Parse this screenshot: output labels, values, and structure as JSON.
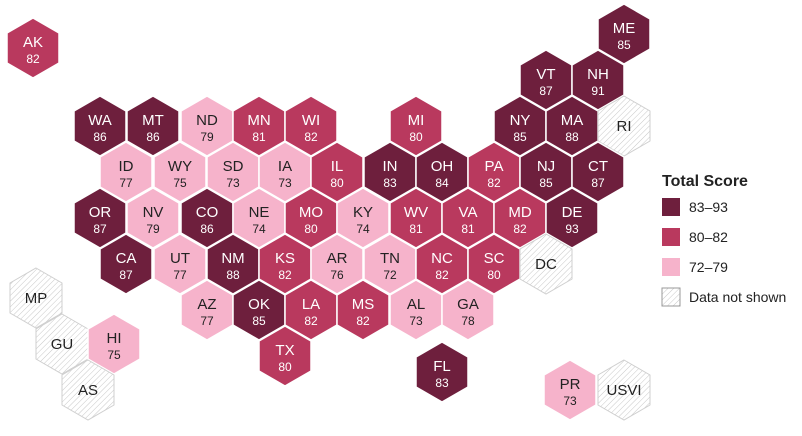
{
  "colors": {
    "high": "#6e1f3d",
    "mid": "#b9395e",
    "low": "#f6b3cb",
    "none": "#ffffff"
  },
  "legend": {
    "title": "Total Score",
    "items": [
      {
        "label": "83–93",
        "color": "#6e1f3d"
      },
      {
        "label": "80–82",
        "color": "#b9395e"
      },
      {
        "label": "72–79",
        "color": "#f6b3cb"
      },
      {
        "label": "Data not shown",
        "color": "#ffffff"
      }
    ]
  },
  "states": [
    {
      "abbr": "AK",
      "value": "82",
      "tier": "mid"
    },
    {
      "abbr": "ME",
      "value": "85",
      "tier": "high"
    },
    {
      "abbr": "VT",
      "value": "87",
      "tier": "high"
    },
    {
      "abbr": "NH",
      "value": "91",
      "tier": "high"
    },
    {
      "abbr": "WA",
      "value": "86",
      "tier": "high"
    },
    {
      "abbr": "MT",
      "value": "86",
      "tier": "high"
    },
    {
      "abbr": "ND",
      "value": "79",
      "tier": "low"
    },
    {
      "abbr": "MN",
      "value": "81",
      "tier": "mid"
    },
    {
      "abbr": "WI",
      "value": "82",
      "tier": "mid"
    },
    {
      "abbr": "MI",
      "value": "80",
      "tier": "mid"
    },
    {
      "abbr": "NY",
      "value": "85",
      "tier": "high"
    },
    {
      "abbr": "MA",
      "value": "88",
      "tier": "high"
    },
    {
      "abbr": "RI",
      "value": "",
      "tier": "none"
    },
    {
      "abbr": "ID",
      "value": "77",
      "tier": "low"
    },
    {
      "abbr": "WY",
      "value": "75",
      "tier": "low"
    },
    {
      "abbr": "SD",
      "value": "73",
      "tier": "low"
    },
    {
      "abbr": "IA",
      "value": "73",
      "tier": "low"
    },
    {
      "abbr": "IL",
      "value": "80",
      "tier": "mid"
    },
    {
      "abbr": "IN",
      "value": "83",
      "tier": "high"
    },
    {
      "abbr": "OH",
      "value": "84",
      "tier": "high"
    },
    {
      "abbr": "PA",
      "value": "82",
      "tier": "mid"
    },
    {
      "abbr": "NJ",
      "value": "85",
      "tier": "high"
    },
    {
      "abbr": "CT",
      "value": "87",
      "tier": "high"
    },
    {
      "abbr": "OR",
      "value": "87",
      "tier": "high"
    },
    {
      "abbr": "NV",
      "value": "79",
      "tier": "low"
    },
    {
      "abbr": "CO",
      "value": "86",
      "tier": "high"
    },
    {
      "abbr": "NE",
      "value": "74",
      "tier": "low"
    },
    {
      "abbr": "MO",
      "value": "80",
      "tier": "mid"
    },
    {
      "abbr": "KY",
      "value": "74",
      "tier": "low"
    },
    {
      "abbr": "WV",
      "value": "81",
      "tier": "mid"
    },
    {
      "abbr": "VA",
      "value": "81",
      "tier": "mid"
    },
    {
      "abbr": "MD",
      "value": "82",
      "tier": "mid"
    },
    {
      "abbr": "DE",
      "value": "93",
      "tier": "high"
    },
    {
      "abbr": "CA",
      "value": "87",
      "tier": "high"
    },
    {
      "abbr": "UT",
      "value": "77",
      "tier": "low"
    },
    {
      "abbr": "NM",
      "value": "88",
      "tier": "high"
    },
    {
      "abbr": "KS",
      "value": "82",
      "tier": "mid"
    },
    {
      "abbr": "AR",
      "value": "76",
      "tier": "low"
    },
    {
      "abbr": "TN",
      "value": "72",
      "tier": "low"
    },
    {
      "abbr": "NC",
      "value": "82",
      "tier": "mid"
    },
    {
      "abbr": "SC",
      "value": "80",
      "tier": "mid"
    },
    {
      "abbr": "DC",
      "value": "",
      "tier": "none"
    },
    {
      "abbr": "AZ",
      "value": "77",
      "tier": "low"
    },
    {
      "abbr": "OK",
      "value": "85",
      "tier": "high"
    },
    {
      "abbr": "LA",
      "value": "82",
      "tier": "mid"
    },
    {
      "abbr": "MS",
      "value": "82",
      "tier": "mid"
    },
    {
      "abbr": "AL",
      "value": "73",
      "tier": "low"
    },
    {
      "abbr": "GA",
      "value": "78",
      "tier": "low"
    },
    {
      "abbr": "TX",
      "value": "80",
      "tier": "mid"
    },
    {
      "abbr": "FL",
      "value": "83",
      "tier": "high"
    },
    {
      "abbr": "MP",
      "value": "",
      "tier": "none"
    },
    {
      "abbr": "GU",
      "value": "",
      "tier": "none"
    },
    {
      "abbr": "HI",
      "value": "75",
      "tier": "low"
    },
    {
      "abbr": "AS",
      "value": "",
      "tier": "none"
    },
    {
      "abbr": "PR",
      "value": "73",
      "tier": "low"
    },
    {
      "abbr": "USVI",
      "value": "",
      "tier": "none"
    }
  ]
}
